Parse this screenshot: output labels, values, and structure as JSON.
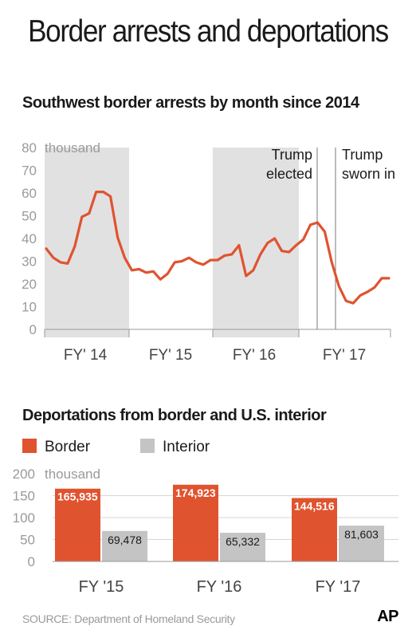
{
  "title": "Border arrests and deportations",
  "source": "SOURCE: Department of Homeland Security",
  "credit": "AP",
  "colors": {
    "border": "#e0532f",
    "interior": "#c4c4c4",
    "shade": "#e1e1e1",
    "line": "#e0532f"
  },
  "chart_data": [
    {
      "type": "line",
      "title": "Southwest border arrests by month since 2014",
      "unit_label": "thousand",
      "ylim": [
        0,
        80
      ],
      "yticks": [
        0,
        10,
        20,
        30,
        40,
        50,
        60,
        70,
        80
      ],
      "x_labels": [
        "FY' 14",
        "FY' 15",
        "FY' 16",
        "FY' 17"
      ],
      "shaded_periods": [
        "FY' 14",
        "FY' 16"
      ],
      "series": [
        {
          "values": [
            35.5,
            31.5,
            29.5,
            29,
            36.5,
            49.5,
            51,
            60.5,
            60.5,
            58.5,
            40.5,
            31.5,
            26,
            26.5,
            25,
            25.5,
            22,
            24.5,
            29.5,
            30,
            31.5,
            29.5,
            28.5,
            30.5,
            30.5,
            32.5,
            33,
            37,
            23.5,
            26,
            33,
            38,
            40,
            34.5,
            34,
            37,
            39.5,
            46,
            47,
            43,
            29.5,
            19,
            12.5,
            11.5,
            15,
            16.5,
            18.5,
            22.5,
            22.5
          ]
        }
      ],
      "annotations": [
        {
          "label": [
            "Trump",
            "elected"
          ],
          "index": 38
        },
        {
          "label": [
            "Trump",
            "sworn in"
          ],
          "index": 41
        }
      ]
    },
    {
      "type": "bar",
      "title": "Deportations from border and U.S. interior",
      "unit_label": "thousand",
      "ylim": [
        0,
        200
      ],
      "yticks": [
        0,
        50,
        100,
        150,
        200
      ],
      "categories": [
        "FY '15",
        "FY '16",
        "FY '17"
      ],
      "series": [
        {
          "name": "Border",
          "values": [
            165935,
            174923,
            144516
          ],
          "labels": [
            "165,935",
            "174,923",
            "144,516"
          ]
        },
        {
          "name": "Interior",
          "values": [
            69478,
            65332,
            81603
          ],
          "labels": [
            "69,478",
            "65,332",
            "81,603"
          ]
        }
      ]
    }
  ]
}
